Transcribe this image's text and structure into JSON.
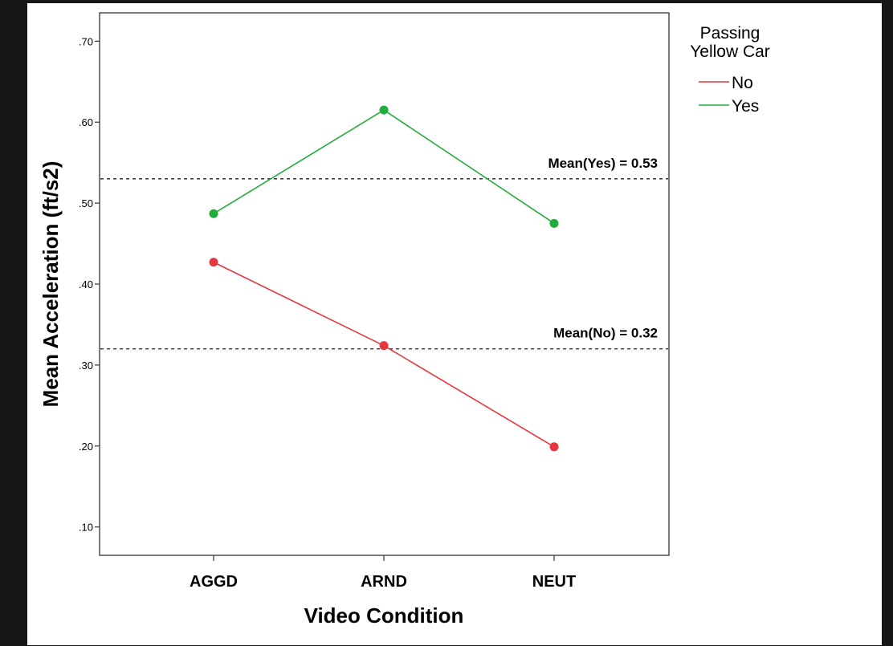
{
  "chart_data": {
    "type": "line",
    "title": "",
    "xlabel": "Video Condition",
    "ylabel": "Mean Acceleration (ft/s2)",
    "categories": [
      "AGGD",
      "ARND",
      "NEUT"
    ],
    "ylim": [
      0.065,
      0.735
    ],
    "yticks": [
      ".10",
      ".20",
      ".30",
      ".40",
      ".50",
      ".60",
      ".70"
    ],
    "ytick_values": [
      0.1,
      0.2,
      0.3,
      0.4,
      0.5,
      0.6,
      0.7
    ],
    "legend": {
      "title": "Passing Yellow Car",
      "title_lines": [
        "Passing",
        "Yellow Car"
      ],
      "placement": "right"
    },
    "series": [
      {
        "name": "No",
        "values": [
          0.427,
          0.324,
          0.199
        ],
        "color": "#e8363f"
      },
      {
        "name": "Yes",
        "values": [
          0.487,
          0.615,
          0.475
        ],
        "color": "#21ad3c"
      }
    ],
    "reference_lines": [
      {
        "label": "Mean(Yes) = 0.53",
        "value": 0.53
      },
      {
        "label": "Mean(No) = 0.32",
        "value": 0.32
      }
    ],
    "grid": false
  }
}
